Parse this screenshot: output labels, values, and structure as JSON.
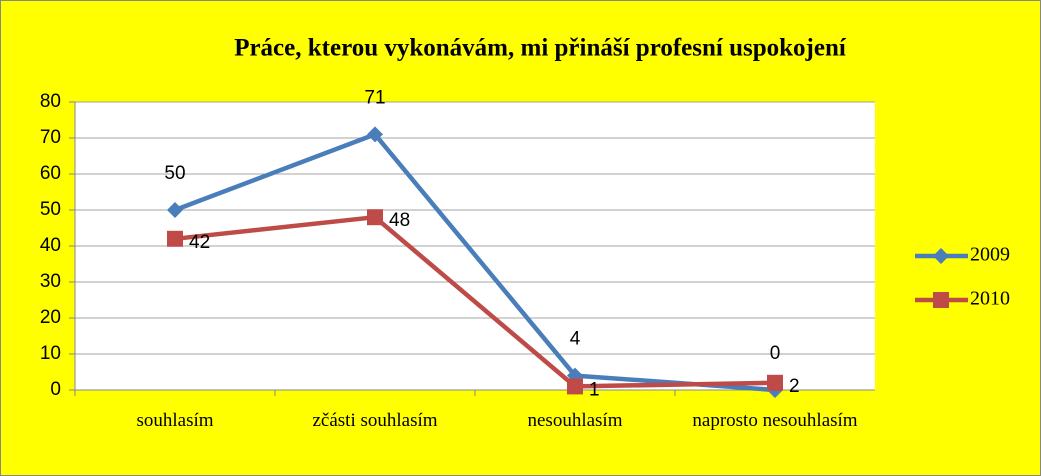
{
  "chart_data": {
    "type": "line",
    "title": "Práce, kterou vykonávám, mi přináší profesní uspokojení",
    "categories": [
      "souhlasím",
      "zčásti souhlasím",
      "nesouhlasím",
      "naprosto nesouhlasím"
    ],
    "series": [
      {
        "name": "2009",
        "color": "#4a7ebb",
        "values": [
          50,
          71,
          4,
          0
        ]
      },
      {
        "name": "2010",
        "color": "#be4b48",
        "values": [
          42,
          48,
          1,
          2
        ]
      }
    ],
    "ylim": [
      0,
      80
    ],
    "yticks": [
      0,
      10,
      20,
      30,
      40,
      50,
      60,
      70,
      80
    ],
    "grid": true,
    "legend": "right",
    "background": "#ffff00"
  }
}
